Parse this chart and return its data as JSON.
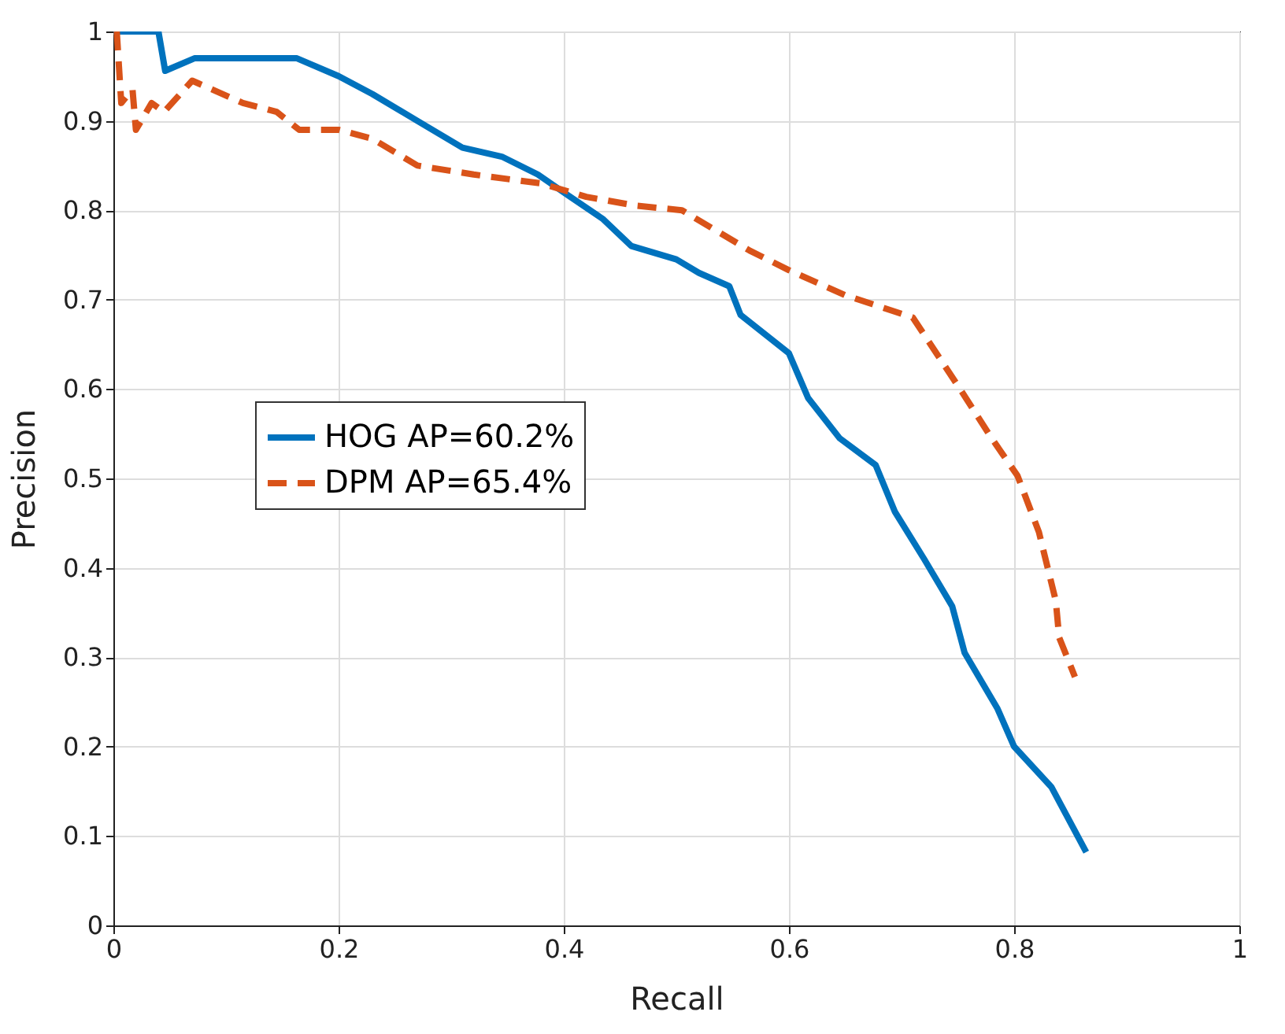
{
  "chart_data": {
    "type": "line",
    "xlabel": "Recall",
    "ylabel": "Precision",
    "xlim": [
      0,
      1
    ],
    "ylim": [
      0,
      1
    ],
    "xticks": [
      0,
      0.2,
      0.4,
      0.6,
      0.8,
      1
    ],
    "yticks": [
      0,
      0.1,
      0.2,
      0.3,
      0.4,
      0.5,
      0.6,
      0.7,
      0.8,
      0.9,
      1
    ],
    "grid": true,
    "legend": "left",
    "series": [
      {
        "name": "HOG AP=60.2%",
        "color": "#0072bd",
        "line_style": "solid",
        "x": [
          0,
          0.04,
          0.046,
          0.072,
          0.115,
          0.163,
          0.2,
          0.23,
          0.27,
          0.31,
          0.345,
          0.377,
          0.4,
          0.435,
          0.46,
          0.5,
          0.52,
          0.547,
          0.557,
          0.6,
          0.617,
          0.645,
          0.677,
          0.694,
          0.72,
          0.745,
          0.756,
          0.785,
          0.8,
          0.833,
          0.864
        ],
        "values": [
          1.0,
          1.0,
          0.956,
          0.97,
          0.97,
          0.97,
          0.95,
          0.93,
          0.9,
          0.87,
          0.86,
          0.84,
          0.82,
          0.79,
          0.76,
          0.745,
          0.73,
          0.715,
          0.683,
          0.64,
          0.59,
          0.545,
          0.515,
          0.463,
          0.41,
          0.357,
          0.305,
          0.243,
          0.2,
          0.155,
          0.082
        ]
      },
      {
        "name": "DPM AP=65.4%",
        "color": "#d95319",
        "line_style": "dashed",
        "x": [
          0.003,
          0.007,
          0.017,
          0.02,
          0.034,
          0.045,
          0.07,
          0.115,
          0.145,
          0.165,
          0.2,
          0.23,
          0.27,
          0.32,
          0.38,
          0.42,
          0.465,
          0.505,
          0.565,
          0.6,
          0.65,
          0.71,
          0.752,
          0.78,
          0.803,
          0.822,
          0.837,
          0.84,
          0.854
        ],
        "values": [
          1.0,
          0.92,
          0.935,
          0.89,
          0.92,
          0.91,
          0.945,
          0.92,
          0.91,
          0.89,
          0.89,
          0.88,
          0.85,
          0.84,
          0.83,
          0.815,
          0.805,
          0.8,
          0.755,
          0.733,
          0.705,
          0.68,
          0.6,
          0.545,
          0.503,
          0.44,
          0.363,
          0.322,
          0.278
        ]
      }
    ]
  }
}
